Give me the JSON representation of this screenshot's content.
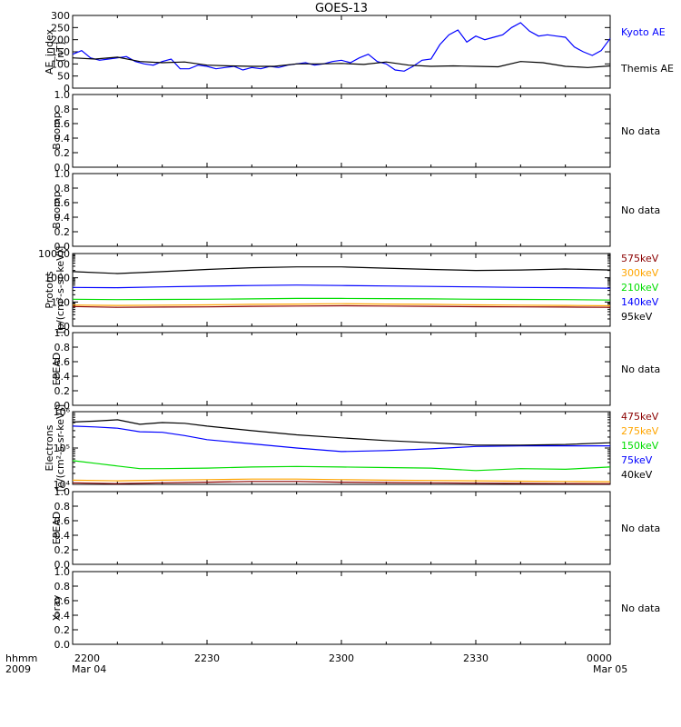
{
  "figure": {
    "title": "GOES-13",
    "time_axis": {
      "label": "hhmm",
      "year": "2009",
      "ticks": [
        "2200",
        "2230",
        "2300",
        "2330",
        "0000"
      ],
      "start_date": "Mar 04",
      "end_date": "Mar 05"
    }
  },
  "chart_data": [
    {
      "type": "line",
      "ylabel": [
        "AE_index",
        "[nT]"
      ],
      "ylim": [
        0,
        300
      ],
      "yticks": [
        "0",
        "50",
        "100",
        "150",
        "200",
        "250",
        "300"
      ],
      "series": [
        {
          "name": "Kyoto AE",
          "color": "#0000ff",
          "x": [
            "2200",
            "2202",
            "2204",
            "2206",
            "2208",
            "2210",
            "2212",
            "2214",
            "2216",
            "2218",
            "2220",
            "2222",
            "2224",
            "2226",
            "2228",
            "2230",
            "2232",
            "2234",
            "2236",
            "2238",
            "2240",
            "2242",
            "2244",
            "2246",
            "2248",
            "2250",
            "2252",
            "2254",
            "2256",
            "2258",
            "2300",
            "2302",
            "2304",
            "2306",
            "2308",
            "2310",
            "2312",
            "2314",
            "2316",
            "2318",
            "2320",
            "2322",
            "2324",
            "2326",
            "2328",
            "2330",
            "2332",
            "2334",
            "2336",
            "2338",
            "2340",
            "2342",
            "2344",
            "2346",
            "2348",
            "2350",
            "2352",
            "2354",
            "2356",
            "2358",
            "0000"
          ],
          "y": [
            140,
            155,
            125,
            115,
            120,
            125,
            130,
            110,
            100,
            95,
            110,
            120,
            80,
            80,
            95,
            90,
            80,
            85,
            90,
            75,
            85,
            80,
            90,
            85,
            95,
            100,
            105,
            95,
            100,
            110,
            115,
            105,
            125,
            140,
            110,
            100,
            75,
            70,
            90,
            115,
            120,
            180,
            220,
            240,
            190,
            215,
            200,
            210,
            220,
            250,
            270,
            235,
            215,
            220,
            215,
            210,
            170,
            150,
            135,
            155,
            205
          ]
        },
        {
          "name": "Themis AE",
          "color": "#000000",
          "x": [
            "2200",
            "2205",
            "2210",
            "2215",
            "2220",
            "2225",
            "2230",
            "2235",
            "2240",
            "2245",
            "2250",
            "2255",
            "2300",
            "2305",
            "2310",
            "2315",
            "2320",
            "2325",
            "2330",
            "2335",
            "2340",
            "2345",
            "2350",
            "2355",
            "0000"
          ],
          "y": [
            125,
            120,
            128,
            110,
            105,
            108,
            95,
            92,
            90,
            90,
            100,
            100,
            102,
            98,
            108,
            95,
            90,
            92,
            90,
            88,
            110,
            105,
            90,
            85,
            92
          ]
        }
      ]
    },
    {
      "type": "line",
      "ylabel": [
        "B comp"
      ],
      "ylim": [
        0,
        1
      ],
      "yticks": [
        "0.0",
        "0.2",
        "0.4",
        "0.6",
        "0.8",
        "1.0"
      ],
      "note": "No data",
      "series": []
    },
    {
      "type": "line",
      "ylabel": [
        "B comp"
      ],
      "ylim": [
        0,
        1
      ],
      "yticks": [
        "0.0",
        "0.2",
        "0.4",
        "0.6",
        "0.8",
        "1.0"
      ],
      "note": "No data",
      "series": []
    },
    {
      "type": "line",
      "scale": "log",
      "ylabel": [
        "Protons",
        "[p/(cm²-s-sr-keV)]"
      ],
      "ylim": [
        10,
        10000
      ],
      "yticks": [
        "10",
        "100",
        "1000",
        "10000"
      ],
      "series": [
        {
          "name": "575keV",
          "color": "#8b0000",
          "x": [
            "2200",
            "2210",
            "2220",
            "2230",
            "2240",
            "2250",
            "2300",
            "2310",
            "2320",
            "2330",
            "2340",
            "2350",
            "0000"
          ],
          "y": [
            65,
            60,
            62,
            63,
            66,
            68,
            70,
            68,
            66,
            64,
            63,
            62,
            60
          ]
        },
        {
          "name": "300keV",
          "color": "#ffa500",
          "x": [
            "2200",
            "2210",
            "2220",
            "2230",
            "2240",
            "2250",
            "2300",
            "2310",
            "2320",
            "2330",
            "2340",
            "2350",
            "0000"
          ],
          "y": [
            75,
            72,
            74,
            76,
            80,
            82,
            85,
            82,
            80,
            76,
            74,
            72,
            70
          ]
        },
        {
          "name": "210keV",
          "color": "#00dd00",
          "x": [
            "2200",
            "2210",
            "2220",
            "2230",
            "2240",
            "2250",
            "2300",
            "2310",
            "2320",
            "2330",
            "2340",
            "2350",
            "0000"
          ],
          "y": [
            130,
            125,
            128,
            130,
            135,
            140,
            140,
            138,
            135,
            130,
            128,
            125,
            120
          ]
        },
        {
          "name": "140keV",
          "color": "#0000ff",
          "x": [
            "2200",
            "2210",
            "2220",
            "2230",
            "2240",
            "2250",
            "2300",
            "2310",
            "2320",
            "2330",
            "2340",
            "2350",
            "0000"
          ],
          "y": [
            400,
            390,
            420,
            450,
            480,
            500,
            480,
            460,
            440,
            420,
            400,
            390,
            370
          ]
        },
        {
          "name": "95keV",
          "color": "#000000",
          "x": [
            "2200",
            "2210",
            "2220",
            "2230",
            "2240",
            "2250",
            "2300",
            "2310",
            "2320",
            "2330",
            "2340",
            "2350",
            "0000"
          ],
          "y": [
            1800,
            1500,
            1800,
            2200,
            2600,
            2800,
            2800,
            2500,
            2200,
            2000,
            2100,
            2300,
            2100
          ]
        }
      ]
    },
    {
      "type": "line",
      "ylabel": [
        "EPEAD"
      ],
      "ylim": [
        0,
        1
      ],
      "yticks": [
        "0.0",
        "0.2",
        "0.4",
        "0.6",
        "0.8",
        "1.0"
      ],
      "note": "No data",
      "series": []
    },
    {
      "type": "line",
      "scale": "log",
      "ylabel": [
        "Electrons",
        "[e/(cm²-s-sr-keV)]"
      ],
      "ylim": [
        10000,
        1000000
      ],
      "yticks": [
        "10⁴",
        "10⁵",
        "10⁶"
      ],
      "series": [
        {
          "name": "475keV",
          "color": "#8b0000",
          "x": [
            "2200",
            "2210",
            "2220",
            "2230",
            "2240",
            "2250",
            "2300",
            "2310",
            "2320",
            "2330",
            "2340",
            "2350",
            "0000"
          ],
          "y": [
            11000,
            10500,
            11000,
            11500,
            12000,
            12000,
            11500,
            11200,
            11000,
            10800,
            10600,
            10500,
            10400
          ]
        },
        {
          "name": "275keV",
          "color": "#ffa500",
          "x": [
            "2200",
            "2210",
            "2220",
            "2230",
            "2240",
            "2250",
            "2300",
            "2310",
            "2320",
            "2330",
            "2340",
            "2350",
            "0000"
          ],
          "y": [
            13000,
            12500,
            13000,
            13500,
            14000,
            14000,
            13500,
            13000,
            12800,
            12500,
            12200,
            12000,
            11800
          ]
        },
        {
          "name": "150keV",
          "color": "#00dd00",
          "x": [
            "2200",
            "2205",
            "2210",
            "2215",
            "2220",
            "2230",
            "2240",
            "2250",
            "2300",
            "2310",
            "2320",
            "2330",
            "2340",
            "2350",
            "0000"
          ],
          "y": [
            45000,
            38000,
            32000,
            27000,
            27000,
            28000,
            30000,
            31000,
            30000,
            29000,
            28000,
            24000,
            27000,
            26000,
            30000
          ]
        },
        {
          "name": "75keV",
          "color": "#0000ff",
          "x": [
            "2200",
            "2205",
            "2210",
            "2215",
            "2220",
            "2225",
            "2230",
            "2240",
            "2250",
            "2300",
            "2310",
            "2320",
            "2330",
            "2340",
            "2350",
            "0000"
          ],
          "y": [
            400000,
            380000,
            350000,
            280000,
            270000,
            220000,
            170000,
            130000,
            100000,
            80000,
            85000,
            95000,
            110000,
            115000,
            115000,
            115000
          ]
        },
        {
          "name": "40keV",
          "color": "#000000",
          "x": [
            "2200",
            "2205",
            "2210",
            "2215",
            "2220",
            "2225",
            "2230",
            "2240",
            "2250",
            "2300",
            "2310",
            "2320",
            "2330",
            "2340",
            "2350",
            "0000"
          ],
          "y": [
            520000,
            550000,
            600000,
            450000,
            500000,
            480000,
            400000,
            300000,
            230000,
            190000,
            160000,
            140000,
            120000,
            120000,
            125000,
            140000
          ]
        }
      ]
    },
    {
      "type": "line",
      "ylabel": [
        "EPEAD"
      ],
      "ylim": [
        0,
        1
      ],
      "yticks": [
        "0.0",
        "0.2",
        "0.4",
        "0.6",
        "0.8",
        "1.0"
      ],
      "note": "No data",
      "series": []
    },
    {
      "type": "line",
      "ylabel": [
        "X-ray"
      ],
      "ylim": [
        0,
        1
      ],
      "yticks": [
        "0.0",
        "0.2",
        "0.4",
        "0.6",
        "0.8",
        "1.0"
      ],
      "note": "No data",
      "series": []
    }
  ]
}
